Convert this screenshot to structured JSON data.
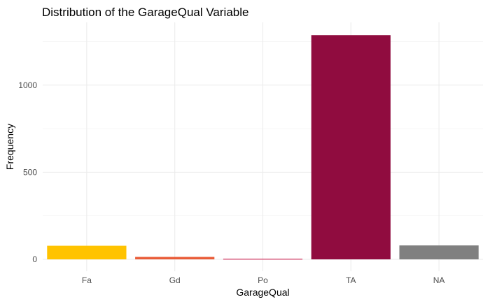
{
  "chart_data": {
    "type": "bar",
    "title": "Distribution of the GarageQual Variable",
    "xlabel": "GarageQual",
    "ylabel": "Frequency",
    "categories": [
      "Fa",
      "Gd",
      "Po",
      "TA",
      "NA"
    ],
    "values": [
      78,
      14,
      3,
      1287,
      80
    ],
    "colors": [
      "#FFC300",
      "#E95C38",
      "#C70039",
      "#900C3F",
      "#808080"
    ],
    "ylim": [
      0,
      1350
    ],
    "yticks": [
      0,
      500,
      1000
    ],
    "grid": true,
    "legend": "none"
  }
}
